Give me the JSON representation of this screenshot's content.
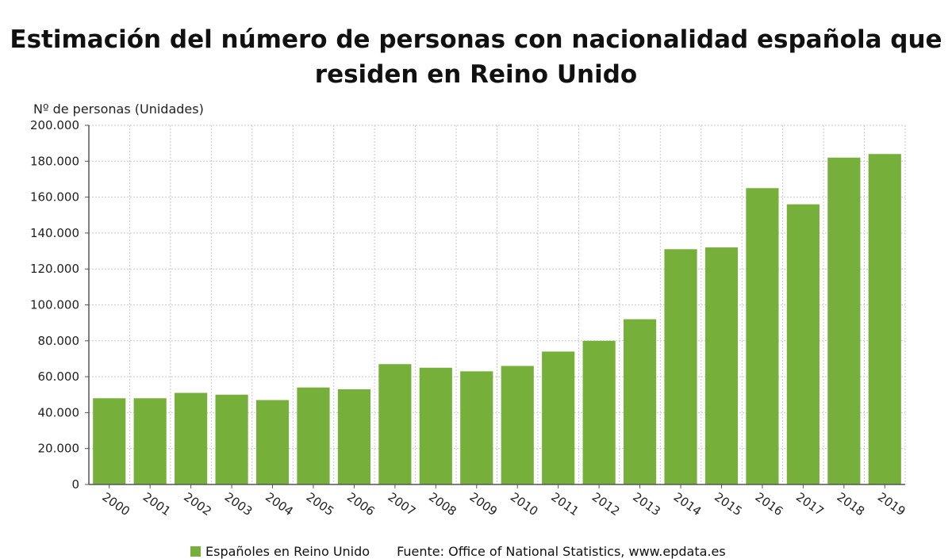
{
  "chart_data": {
    "type": "bar",
    "title": "Estimación del número de personas con nacionalidad española que residen en Reino Unido",
    "ylabel": "Nº de personas (Unidades)",
    "xlabel": "",
    "categories": [
      "2000",
      "2001",
      "2002",
      "2003",
      "2004",
      "2005",
      "2006",
      "2007",
      "2008",
      "2009",
      "2010",
      "2011",
      "2012",
      "2013",
      "2014",
      "2015",
      "2016",
      "2017",
      "2018",
      "2019"
    ],
    "series": [
      {
        "name": "Españoles en Reino Unido",
        "values": [
          48000,
          48000,
          51000,
          50000,
          47000,
          54000,
          53000,
          67000,
          65000,
          63000,
          66000,
          74000,
          80000,
          92000,
          131000,
          132000,
          165000,
          156000,
          182000,
          184000
        ]
      }
    ],
    "ylim": [
      0,
      200000
    ],
    "yticks": [
      0,
      20000,
      40000,
      60000,
      80000,
      100000,
      120000,
      140000,
      160000,
      180000,
      200000
    ],
    "ytick_labels": [
      "0",
      "20.000",
      "40.000",
      "60.000",
      "80.000",
      "100.000",
      "120.000",
      "140.000",
      "160.000",
      "180.000",
      "200.000"
    ],
    "grid": true,
    "legend_position": "bottom",
    "bar_color": "#76b03b",
    "source": "Fuente: Office of National Statistics, www.epdata.es"
  }
}
